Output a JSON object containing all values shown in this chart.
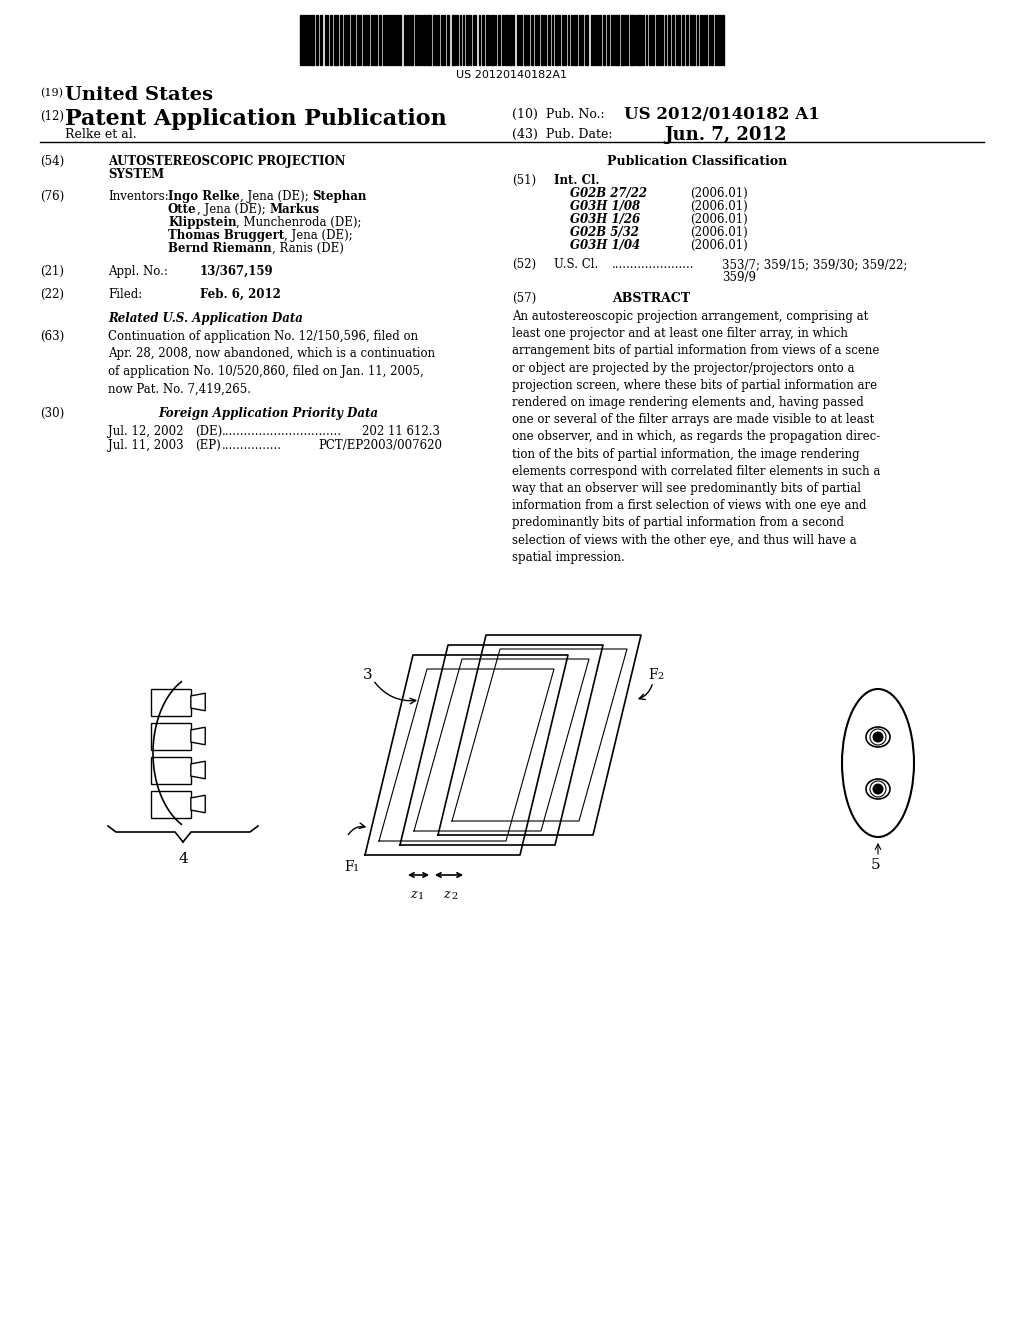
{
  "barcode_text": "US 20120140182A1",
  "bg_color": "#ffffff",
  "text_color": "#000000",
  "header": {
    "country_num": "(19)",
    "country": "United States",
    "type_num": "(12)",
    "type": "Patent Application Publication",
    "pub_num_label": "(10) Pub. No.:",
    "pub_num": "US 2012/0140182 A1",
    "authors": "Relke et al.",
    "pub_date_label": "(43) Pub. Date:",
    "pub_date": "Jun. 7, 2012"
  }
}
